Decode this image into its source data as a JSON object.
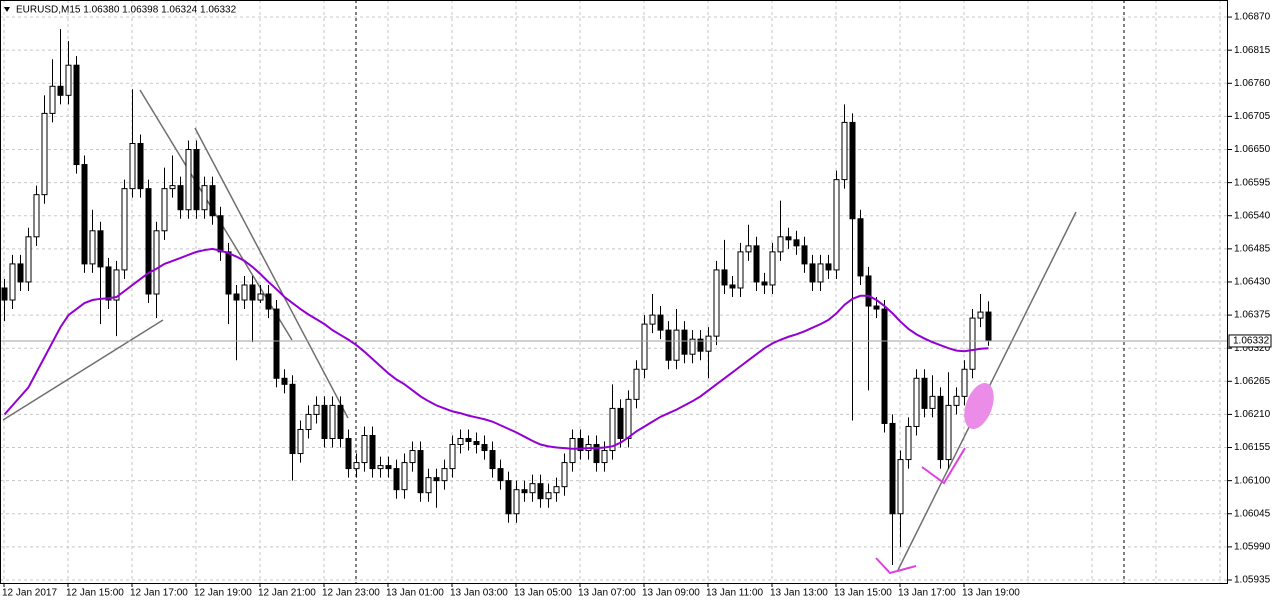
{
  "chart_data": {
    "type": "candlestick",
    "title": "EURUSD,M15  1.06380 1.06398 1.06324 1.06332",
    "categories": [
      "12 Jan 2017",
      null,
      null,
      null,
      null,
      null,
      null,
      null,
      "12 Jan 15:00",
      null,
      null,
      null,
      null,
      null,
      null,
      null,
      "12 Jan 17:00",
      null,
      null,
      null,
      null,
      null,
      null,
      null,
      "12 Jan 19:00",
      null,
      null,
      null,
      null,
      null,
      null,
      null,
      "12 Jan 21:00",
      null,
      null,
      null,
      null,
      null,
      null,
      null,
      "12 Jan 23:00",
      null,
      null,
      null,
      null,
      null,
      null,
      null,
      "13 Jan 01:00",
      null,
      null,
      null,
      null,
      null,
      null,
      null,
      "13 Jan 03:00",
      null,
      null,
      null,
      null,
      null,
      null,
      null,
      "13 Jan 05:00",
      null,
      null,
      null,
      null,
      null,
      null,
      null,
      "13 Jan 07:00",
      null,
      null,
      null,
      null,
      null,
      null,
      null,
      "13 Jan 09:00",
      null,
      null,
      null,
      null,
      null,
      null,
      null,
      "13 Jan 11:00",
      null,
      null,
      null,
      null,
      null,
      null,
      null,
      "13 Jan 13:00",
      null,
      null,
      null,
      null,
      null,
      null,
      null,
      "13 Jan 15:00",
      null,
      null,
      null,
      null,
      null,
      null,
      null,
      "13 Jan 17:00",
      null,
      null,
      null,
      null,
      null,
      null,
      null,
      "13 Jan 19:00",
      null,
      null,
      null
    ],
    "open": [
      1.0642,
      1.064,
      1.0646,
      1.0643,
      1.06505,
      1.06575,
      1.0671,
      1.06755,
      1.0674,
      1.0679,
      1.06625,
      1.0646,
      1.06515,
      1.06455,
      1.064,
      1.0645,
      1.06585,
      1.0666,
      1.06585,
      1.0641,
      1.06515,
      1.06585,
      1.0659,
      1.0655,
      1.0665,
      1.0655,
      1.0659,
      1.0654,
      1.0648,
      1.0641,
      1.064,
      1.06425,
      1.064,
      1.0641,
      1.06385,
      1.0627,
      1.0626,
      1.06145,
      1.06185,
      1.0621,
      1.06225,
      1.0617,
      1.06225,
      1.0617,
      1.0612,
      1.0613,
      1.06175,
      1.0612,
      1.06125,
      1.0612,
      1.06085,
      1.0613,
      1.0615,
      1.0608,
      1.06105,
      1.061,
      1.0612,
      1.0616,
      1.0617,
      1.06165,
      1.0616,
      1.0615,
      1.0612,
      1.061,
      1.06045,
      1.06085,
      1.0608,
      1.06095,
      1.0607,
      1.0608,
      1.0609,
      1.0613,
      1.0617,
      1.0615,
      1.0616,
      1.0613,
      1.0615,
      1.0622,
      1.0617,
      1.06235,
      1.06285,
      1.0636,
      1.06375,
      1.0635,
      1.063,
      1.0635,
      1.0631,
      1.06335,
      1.06315,
      1.0634,
      1.0645,
      1.06425,
      1.0642,
      1.0648,
      1.0649,
      1.0643,
      1.06425,
      1.0648,
      1.06505,
      1.065,
      1.0649,
      1.0646,
      1.0643,
      1.0646,
      1.0645,
      1.066,
      1.06695,
      1.06535,
      1.0644,
      1.0639,
      1.06385,
      1.06195,
      1.06045,
      1.06135,
      1.0619,
      1.0627,
      1.0622,
      1.0624,
      1.06135,
      1.06225,
      1.0624,
      1.06285,
      1.0637,
      1.0638
    ],
    "high": [
      1.06435,
      1.06475,
      1.06475,
      1.0652,
      1.0659,
      1.0674,
      1.068,
      1.0685,
      1.0683,
      1.06805,
      1.0664,
      1.0655,
      1.0653,
      1.0647,
      1.06465,
      1.066,
      1.0675,
      1.06675,
      1.066,
      1.0653,
      1.0662,
      1.0664,
      1.06605,
      1.06665,
      1.06665,
      1.06605,
      1.06605,
      1.06555,
      1.06495,
      1.06425,
      1.0644,
      1.0644,
      1.06425,
      1.06425,
      1.064,
      1.06285,
      1.06275,
      1.062,
      1.06225,
      1.0624,
      1.0624,
      1.0624,
      1.0624,
      1.06185,
      1.06145,
      1.0619,
      1.0619,
      1.0614,
      1.0614,
      1.06135,
      1.06145,
      1.06165,
      1.06165,
      1.0612,
      1.0612,
      1.06135,
      1.06175,
      1.06185,
      1.06185,
      1.0618,
      1.06175,
      1.06165,
      1.06135,
      1.06115,
      1.061,
      1.061,
      1.0611,
      1.0611,
      1.06095,
      1.06105,
      1.06145,
      1.06185,
      1.06185,
      1.06175,
      1.06175,
      1.06165,
      1.0626,
      1.06235,
      1.0625,
      1.063,
      1.06375,
      1.0641,
      1.0639,
      1.06365,
      1.06385,
      1.06365,
      1.0635,
      1.0635,
      1.06355,
      1.06465,
      1.065,
      1.0644,
      1.06495,
      1.06525,
      1.06505,
      1.06445,
      1.06495,
      1.06565,
      1.0652,
      1.06515,
      1.06505,
      1.06475,
      1.06475,
      1.06475,
      1.06615,
      1.06725,
      1.0671,
      1.0655,
      1.06455,
      1.06405,
      1.064,
      1.0621,
      1.0615,
      1.06205,
      1.06285,
      1.06285,
      1.06275,
      1.06255,
      1.0628,
      1.06255,
      1.063,
      1.06385,
      1.0641,
      1.06398
    ],
    "low": [
      1.06365,
      1.06385,
      1.06415,
      1.06415,
      1.0649,
      1.0656,
      1.06695,
      1.06725,
      1.06725,
      1.0661,
      1.06445,
      1.06445,
      1.0636,
      1.06385,
      1.0634,
      1.06435,
      1.0657,
      1.0657,
      1.06395,
      1.0637,
      1.065,
      1.0657,
      1.06535,
      1.06535,
      1.06535,
      1.06535,
      1.06525,
      1.06465,
      1.0636,
      1.063,
      1.06385,
      1.0633,
      1.06395,
      1.0637,
      1.06255,
      1.06245,
      1.061,
      1.0613,
      1.0617,
      1.06195,
      1.06155,
      1.06155,
      1.06155,
      1.06105,
      1.06105,
      1.06115,
      1.06105,
      1.06105,
      1.06105,
      1.0607,
      1.0607,
      1.06115,
      1.06065,
      1.06065,
      1.06055,
      1.06085,
      1.06105,
      1.06145,
      1.0615,
      1.06145,
      1.06135,
      1.06105,
      1.06085,
      1.0603,
      1.0603,
      1.06065,
      1.06065,
      1.06055,
      1.06055,
      1.06065,
      1.06075,
      1.06115,
      1.06135,
      1.06135,
      1.06115,
      1.06115,
      1.06135,
      1.06155,
      1.06155,
      1.0622,
      1.0627,
      1.06345,
      1.06335,
      1.06285,
      1.06285,
      1.06295,
      1.06295,
      1.063,
      1.0627,
      1.06325,
      1.0641,
      1.06405,
      1.06405,
      1.06465,
      1.06415,
      1.0641,
      1.0641,
      1.06465,
      1.06485,
      1.06475,
      1.06445,
      1.06415,
      1.06415,
      1.06435,
      1.06435,
      1.06585,
      1.062,
      1.06425,
      1.0625,
      1.0637,
      1.0618,
      1.0596,
      1.0599,
      1.0612,
      1.06175,
      1.06205,
      1.06205,
      1.0612,
      1.0612,
      1.0621,
      1.06225,
      1.0627,
      1.06355,
      1.06324
    ],
    "close": [
      1.064,
      1.0646,
      1.0643,
      1.06505,
      1.06575,
      1.0671,
      1.06755,
      1.0674,
      1.0679,
      1.06625,
      1.0646,
      1.06515,
      1.06455,
      1.064,
      1.0645,
      1.06585,
      1.0666,
      1.06585,
      1.0641,
      1.06515,
      1.06585,
      1.0659,
      1.0655,
      1.0665,
      1.0655,
      1.0659,
      1.0654,
      1.0648,
      1.0641,
      1.064,
      1.06425,
      1.064,
      1.0641,
      1.06385,
      1.0627,
      1.0626,
      1.06145,
      1.06185,
      1.0621,
      1.06225,
      1.0617,
      1.06225,
      1.0617,
      1.0612,
      1.0613,
      1.06175,
      1.0612,
      1.06125,
      1.0612,
      1.06085,
      1.0613,
      1.0615,
      1.0608,
      1.06105,
      1.061,
      1.0612,
      1.0616,
      1.0617,
      1.06165,
      1.0616,
      1.0615,
      1.0612,
      1.061,
      1.06045,
      1.06085,
      1.0608,
      1.06095,
      1.0607,
      1.0608,
      1.0609,
      1.0613,
      1.0617,
      1.0615,
      1.0616,
      1.0613,
      1.0615,
      1.0622,
      1.0617,
      1.06235,
      1.06285,
      1.0636,
      1.06375,
      1.0635,
      1.063,
      1.0635,
      1.0631,
      1.06335,
      1.06315,
      1.0634,
      1.0645,
      1.06425,
      1.0642,
      1.0648,
      1.0649,
      1.0643,
      1.06425,
      1.0648,
      1.06505,
      1.065,
      1.0649,
      1.0646,
      1.0643,
      1.0646,
      1.0645,
      1.066,
      1.06695,
      1.06535,
      1.0644,
      1.0639,
      1.06385,
      1.06195,
      1.06045,
      1.06135,
      1.0619,
      1.0627,
      1.0622,
      1.0624,
      1.06135,
      1.06225,
      1.0624,
      1.06285,
      1.0637,
      1.0638,
      1.06332
    ],
    "moving_average": {
      "color": "#9400d3",
      "values": [
        1.0621,
        1.06225,
        1.0624,
        1.06255,
        1.0628,
        1.06305,
        1.0633,
        1.06355,
        1.06375,
        1.06385,
        1.06395,
        1.064,
        1.06402,
        1.06403,
        1.06405,
        1.06415,
        1.06425,
        1.06435,
        1.06445,
        1.06452,
        1.0646,
        1.06465,
        1.0647,
        1.06475,
        1.0648,
        1.06483,
        1.06485,
        1.06482,
        1.06478,
        1.06472,
        1.06465,
        1.06455,
        1.06443,
        1.0643,
        1.06418,
        1.06405,
        1.06395,
        1.06385,
        1.06376,
        1.06368,
        1.0636,
        1.0635,
        1.06342,
        1.06334,
        1.06325,
        1.06314,
        1.06302,
        1.0629,
        1.06278,
        1.06268,
        1.0626,
        1.0625,
        1.0624,
        1.06232,
        1.06225,
        1.0622,
        1.06215,
        1.06212,
        1.06208,
        1.06205,
        1.06202,
        1.06198,
        1.06192,
        1.06186,
        1.0618,
        1.06173,
        1.06166,
        1.0616,
        1.06157,
        1.06155,
        1.06154,
        1.06153,
        1.06153,
        1.06154,
        1.06154,
        1.06155,
        1.06157,
        1.06163,
        1.06172,
        1.06182,
        1.0619,
        1.06198,
        1.06206,
        1.06212,
        1.06218,
        1.06225,
        1.06232,
        1.0624,
        1.0625,
        1.0626,
        1.0627,
        1.0628,
        1.0629,
        1.063,
        1.0631,
        1.0632,
        1.06328,
        1.06334,
        1.06339,
        1.06343,
        1.06348,
        1.06354,
        1.0636,
        1.06367,
        1.06378,
        1.06392,
        1.06402,
        1.06407,
        1.06407,
        1.064,
        1.0639,
        1.06378,
        1.06364,
        1.06352,
        1.06343,
        1.06336,
        1.0633,
        1.06325,
        1.0632,
        1.06316,
        1.06315,
        1.06317,
        1.06319,
        1.0632
      ]
    },
    "bull_color": "#ffffff",
    "bear_color": "#000000",
    "ylim": [
      1.0593,
      1.06895
    ],
    "yticks": [
      {
        "value": 1.0687,
        "label": "1.06870"
      },
      {
        "value": 1.06815,
        "label": "1.06815"
      },
      {
        "value": 1.0676,
        "label": "1.06760"
      },
      {
        "value": 1.06705,
        "label": "1.06705"
      },
      {
        "value": 1.0665,
        "label": "1.06650"
      },
      {
        "value": 1.06595,
        "label": "1.06595"
      },
      {
        "value": 1.0654,
        "label": "1.06540"
      },
      {
        "value": 1.06485,
        "label": "1.06485"
      },
      {
        "value": 1.0643,
        "label": "1.06430"
      },
      {
        "value": 1.06375,
        "label": "1.06375"
      },
      {
        "value": 1.0632,
        "label": "1.06320"
      },
      {
        "value": 1.06265,
        "label": "1.06265"
      },
      {
        "value": 1.0621,
        "label": "1.06210"
      },
      {
        "value": 1.06155,
        "label": "1.06155"
      },
      {
        "value": 1.061,
        "label": "1.06100"
      },
      {
        "value": 1.06045,
        "label": "1.06045"
      },
      {
        "value": 1.0599,
        "label": "1.05990"
      },
      {
        "value": 1.05935,
        "label": "1.05935"
      }
    ],
    "grid": true
  }
}
